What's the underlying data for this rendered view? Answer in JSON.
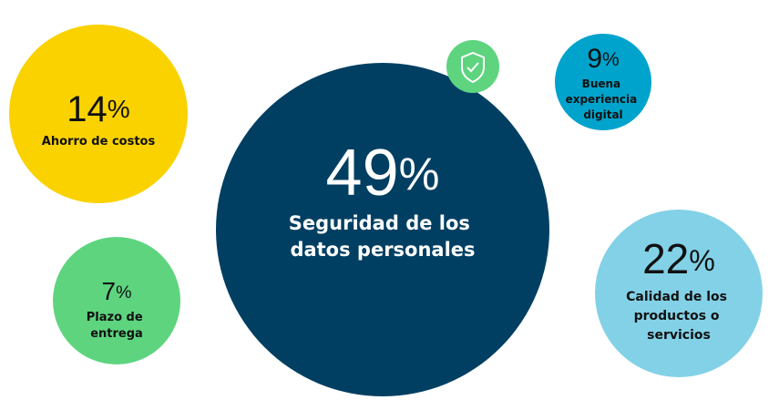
{
  "chart_data": {
    "type": "bubble",
    "categories": [
      "Ahorro de costos",
      "Seguridad de los datos personales",
      "Buena experiencia digital",
      "Plazo de entrega",
      "Calidad de los productos o servicios"
    ],
    "values": [
      14,
      49,
      9,
      7,
      22
    ],
    "value_labels": [
      "14%",
      "49%",
      "9%",
      "7%",
      "22%"
    ],
    "colors": [
      "#f9d200",
      "#003f62",
      "#00a3cc",
      "#5ed47f",
      "#82d1e7"
    ]
  }
}
